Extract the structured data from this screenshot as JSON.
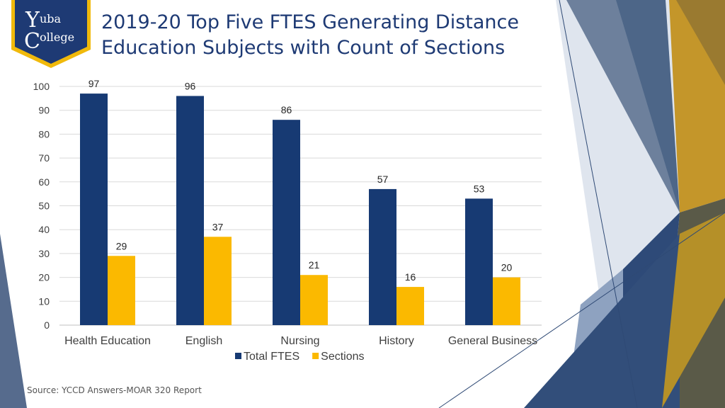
{
  "logo": {
    "text_line1": "uba",
    "text_line2": "ollege",
    "initial_1": "Y",
    "initial_2": "C",
    "primary_color": "#1e3a74",
    "accent_color": "#f0b90b"
  },
  "title": {
    "line1": "2019-20 Top Five FTES Generating Distance",
    "line2": "Education Subjects with Count of Sections"
  },
  "source": "Source: YCCD Answers-MOAR 320 Report",
  "chart_data": {
    "type": "bar",
    "categories": [
      "Health Education",
      "English",
      "Nursing",
      "History",
      "General Business"
    ],
    "series": [
      {
        "name": "Total FTES",
        "values": [
          97,
          96,
          86,
          57,
          53
        ],
        "color": "#173a73"
      },
      {
        "name": "Sections",
        "values": [
          29,
          37,
          21,
          16,
          20
        ],
        "color": "#fbb900"
      }
    ],
    "ylim": [
      0,
      100
    ],
    "yticks": [
      0,
      10,
      20,
      30,
      40,
      50,
      60,
      70,
      80,
      90,
      100
    ],
    "grid": true,
    "legend": "bottom",
    "data_labels": true
  }
}
